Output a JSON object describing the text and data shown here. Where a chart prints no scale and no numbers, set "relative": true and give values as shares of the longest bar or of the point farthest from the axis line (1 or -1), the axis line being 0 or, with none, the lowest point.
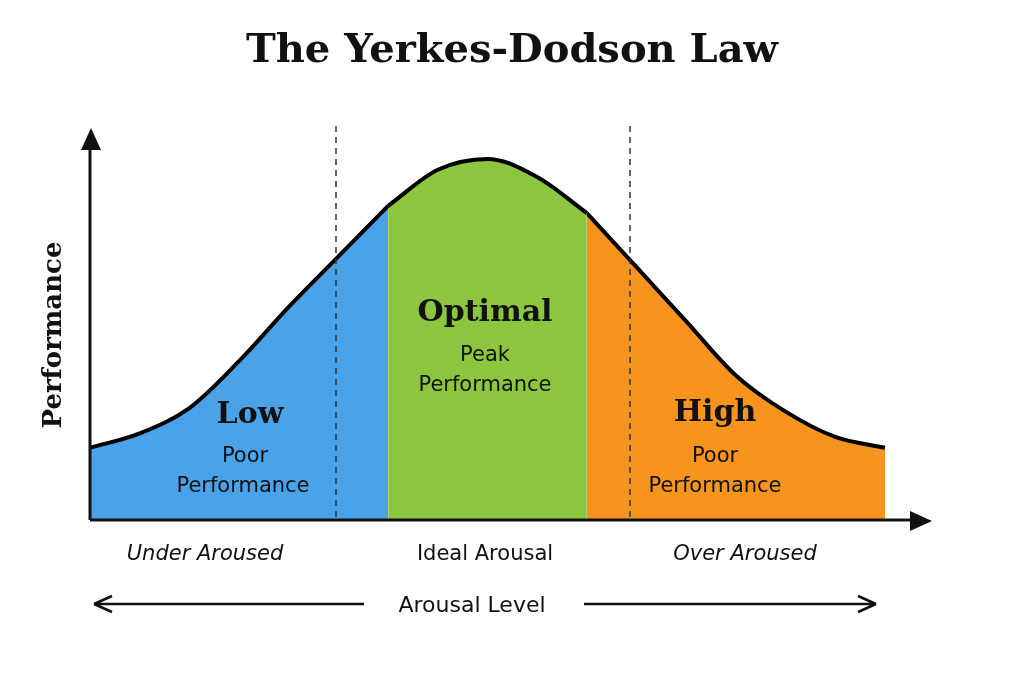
{
  "chart_data": {
    "type": "area",
    "title": "The Yerkes-Dodson Law",
    "xlabel": "Arousal Level",
    "ylabel": "Performance",
    "relative": true,
    "tick_labels": false,
    "grid": false,
    "legend": false,
    "categories": [
      null,
      null,
      null,
      null,
      null,
      null,
      null,
      null,
      null,
      null,
      null,
      null,
      null,
      null,
      null,
      null,
      null
    ],
    "series": [
      {
        "color": "#4aa3e8",
        "values": [
          0.2,
          0.24,
          0.31,
          0.44,
          0.59,
          0.73,
          0.87,
          null,
          null,
          null,
          null,
          null,
          null,
          null,
          null,
          null,
          null
        ]
      },
      {
        "color": "#8cc63f",
        "values": [
          null,
          null,
          null,
          null,
          null,
          null,
          0.87,
          0.97,
          1.0,
          0.95,
          0.85,
          null,
          null,
          null,
          null,
          null,
          null
        ]
      },
      {
        "color": "#f7941d",
        "values": [
          null,
          null,
          null,
          null,
          null,
          null,
          null,
          null,
          null,
          null,
          0.85,
          0.7,
          0.55,
          0.4,
          0.3,
          0.23,
          0.2
        ]
      }
    ],
    "annotations": [
      "Low",
      "Poor Performance",
      "Optimal",
      "Peak Performance",
      "High",
      "Poor Performance",
      "Under Aroused",
      "Ideal Arousal",
      "Over Aroused"
    ]
  }
}
